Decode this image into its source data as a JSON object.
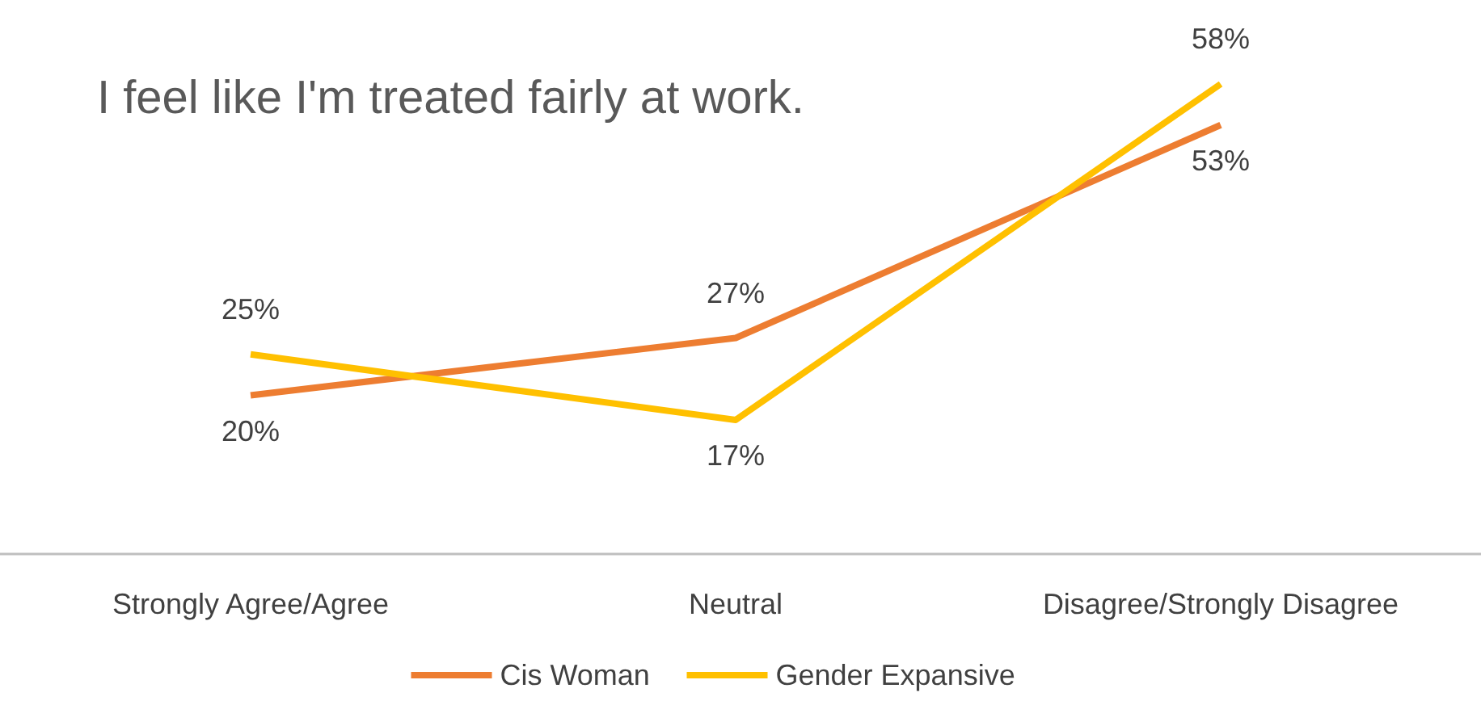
{
  "chart_data": {
    "type": "line",
    "title": "I feel like I'm treated fairly at work.",
    "categories": [
      "Strongly Agree/Agree",
      "Neutral",
      "Disagree/Strongly Disagree"
    ],
    "series": [
      {
        "name": "Cis Woman",
        "color": "#ed7d31",
        "values": [
          20,
          27,
          53
        ],
        "value_labels": [
          "20%",
          "27%",
          "53%"
        ]
      },
      {
        "name": "Gender Expansive",
        "color": "#ffc000",
        "values": [
          25,
          17,
          58
        ],
        "value_labels": [
          "25%",
          "17%",
          "58%"
        ]
      }
    ],
    "legend": "bottom",
    "marker": "none",
    "line_style": "solid"
  }
}
